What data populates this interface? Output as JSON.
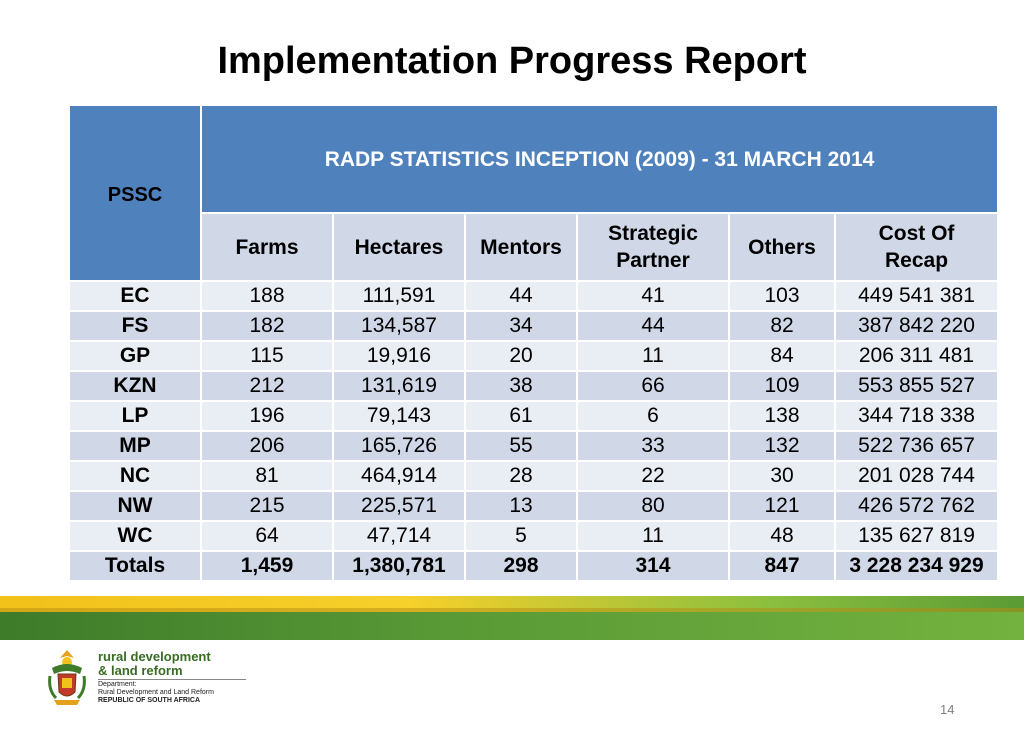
{
  "title": "Implementation Progress Report",
  "table": {
    "pssc_header": "PSSC",
    "banner": "RADP STATISTICS  INCEPTION (2009) - 31 MARCH 2014",
    "columns": [
      {
        "line1": "Farms",
        "line2": ""
      },
      {
        "line1": "Hectares",
        "line2": ""
      },
      {
        "line1": "Mentors",
        "line2": ""
      },
      {
        "line1": "Strategic",
        "line2": "Partner"
      },
      {
        "line1": "Others",
        "line2": ""
      },
      {
        "line1": "Cost Of",
        "line2": "Recap"
      }
    ],
    "rows": [
      {
        "pssc": "EC",
        "farms": "188",
        "hectares": "111,591",
        "mentors": "44",
        "strategic": "41",
        "others": "103",
        "cost": "449 541 381"
      },
      {
        "pssc": "FS",
        "farms": "182",
        "hectares": "134,587",
        "mentors": "34",
        "strategic": "44",
        "others": "82",
        "cost": "387 842 220"
      },
      {
        "pssc": "GP",
        "farms": "115",
        "hectares": "19,916",
        "mentors": "20",
        "strategic": "11",
        "others": "84",
        "cost": "206 311 481"
      },
      {
        "pssc": "KZN",
        "farms": "212",
        "hectares": "131,619",
        "mentors": "38",
        "strategic": "66",
        "others": "109",
        "cost": "553 855 527"
      },
      {
        "pssc": "LP",
        "farms": "196",
        "hectares": "79,143",
        "mentors": "61",
        "strategic": "6",
        "others": "138",
        "cost": "344 718 338"
      },
      {
        "pssc": "MP",
        "farms": "206",
        "hectares": "165,726",
        "mentors": "55",
        "strategic": "33",
        "others": "132",
        "cost": "522 736 657"
      },
      {
        "pssc": "NC",
        "farms": "81",
        "hectares": "464,914",
        "mentors": "28",
        "strategic": "22",
        "others": "30",
        "cost": "201 028 744"
      },
      {
        "pssc": "NW",
        "farms": "215",
        "hectares": "225,571",
        "mentors": "13",
        "strategic": "80",
        "others": "121",
        "cost": "426 572 762"
      },
      {
        "pssc": "WC",
        "farms": "64",
        "hectares": "47,714",
        "mentors": "5",
        "strategic": "11",
        "others": "48",
        "cost": "135 627 819"
      }
    ],
    "totals": {
      "pssc": "Totals",
      "farms": "1,459",
      "hectares": "1,380,781",
      "mentors": "298",
      "strategic": "314",
      "others": "847",
      "cost": "3 228 234 929"
    }
  },
  "logo": {
    "line1": "rural development",
    "line2": "& land reform",
    "sub1": "Department:",
    "sub2": "Rural Development and Land Reform",
    "sub3": "REPUBLIC OF SOUTH AFRICA"
  },
  "page_number": "14",
  "colors": {
    "header_blue": "#4f81bd",
    "row_light": "#e9edf4",
    "row_dark": "#d0d8e8",
    "stripe_yellow": "#f2c11a",
    "stripe_green": "#5a9a36"
  }
}
